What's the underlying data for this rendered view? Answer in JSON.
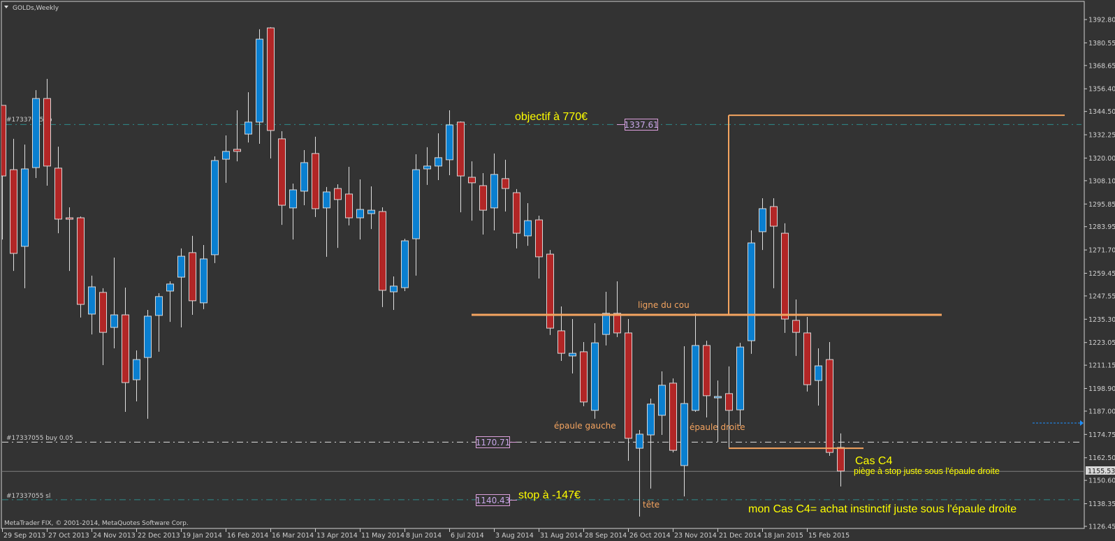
{
  "window": {
    "title": "GOLDs,Weekly",
    "footer": "MetaTrader FIX, © 2001-2014, MetaQuotes Software Corp."
  },
  "orders": {
    "tp_label": "#17337055 tp",
    "buy_label": "#17337055 buy 0.05",
    "sl_label": "#17337055 sl",
    "tp_price_box": "1337.61",
    "buy_price_box": "1170.71",
    "sl_price_box": "1140.43",
    "bid_price": "1155.53"
  },
  "annotations": {
    "objective": "objectif à 770€",
    "neckline": "ligne du cou",
    "left_shoulder": "épaule gauche",
    "right_shoulder": "épaule droite",
    "head": "tête",
    "stop": "stop à -147€",
    "case_title": "Cas C4",
    "case_sub": "piège à stop juste sous l'épaule droite",
    "case_note": "mon Cas C4= achat instinctif juste sous l'épaule droite"
  },
  "colors": {
    "background": "#333333",
    "bull": "#0a7fd0",
    "bear": "#b22626",
    "outline": "#d8d8d8",
    "order_tp_sl": "#2e8b8b",
    "order_buy": "#e0e0e0",
    "drawing": "#f4a460",
    "annotation": "#ffff00"
  },
  "chart_data": {
    "type": "candlestick",
    "symbol": "GOLDs",
    "timeframe": "Weekly",
    "x_start": "29 Sep 2013",
    "x_interval": "1 week",
    "ylim": [
      1126.45,
      1392.8
    ],
    "grid": false,
    "y_ticks": [
      "1392.80",
      "1380.55",
      "1368.65",
      "1356.40",
      "1344.50",
      "1332.25",
      "1320.00",
      "1308.10",
      "1295.85",
      "1283.95",
      "1271.70",
      "1259.45",
      "1247.55",
      "1235.30",
      "1223.05",
      "1211.15",
      "1198.90",
      "1187.00",
      "1174.75",
      "1162.50",
      "1150.60",
      "1138.35",
      "1126.45"
    ],
    "x_ticks": [
      "29 Sep 2013",
      "27 Oct 2013",
      "24 Nov 2013",
      "22 Dec 2013",
      "19 Jan 2014",
      "16 Feb 2014",
      "16 Mar 2014",
      "13 Apr 2014",
      "11 May 2014",
      "8 Jun 2014",
      "6 Jul 2014",
      "3 Aug 2014",
      "31 Aug 2014",
      "28 Sep 2014",
      "26 Oct 2014",
      "23 Nov 2014",
      "21 Dec 2014",
      "18 Jan 2015",
      "15 Feb 2015"
    ],
    "x_tick_every_bars": 4,
    "ohlc_columns": [
      "open",
      "high",
      "low",
      "close"
    ],
    "candles": [
      [
        1347.7,
        1347.7,
        1277.2,
        1310.6
      ],
      [
        1313.9,
        1330.1,
        1260.7,
        1269.9
      ],
      [
        1273.6,
        1327.1,
        1251.6,
        1314.3
      ],
      [
        1315.0,
        1355.7,
        1309.5,
        1351.3
      ],
      [
        1351.3,
        1361.6,
        1305.5,
        1315.8
      ],
      [
        1314.7,
        1326.0,
        1280.5,
        1287.9
      ],
      [
        1288.6,
        1294.1,
        1260.7,
        1287.9
      ],
      [
        1288.6,
        1289.3,
        1236.2,
        1243.1
      ],
      [
        1238.0,
        1258.2,
        1227.3,
        1252.3
      ],
      [
        1249.4,
        1251.6,
        1211.2,
        1228.4
      ],
      [
        1231.0,
        1267.7,
        1220.0,
        1237.6
      ],
      [
        1237.6,
        1251.9,
        1186.6,
        1202.0
      ],
      [
        1203.5,
        1218.9,
        1192.1,
        1214.1
      ],
      [
        1215.2,
        1240.2,
        1183.0,
        1236.9
      ],
      [
        1237.3,
        1249.0,
        1218.2,
        1247.2
      ],
      [
        1250.1,
        1255.2,
        1233.9,
        1253.8
      ],
      [
        1257.4,
        1272.5,
        1231.0,
        1268.4
      ],
      [
        1270.3,
        1279.1,
        1237.6,
        1245.0
      ],
      [
        1243.9,
        1274.3,
        1240.6,
        1267.0
      ],
      [
        1269.2,
        1320.9,
        1264.8,
        1318.7
      ],
      [
        1319.4,
        1331.9,
        1307.0,
        1323.5
      ],
      [
        1324.6,
        1345.1,
        1318.3,
        1323.5
      ],
      [
        1332.6,
        1354.6,
        1328.2,
        1338.9
      ],
      [
        1338.9,
        1387.7,
        1327.5,
        1382.5
      ],
      [
        1388.4,
        1388.8,
        1319.8,
        1334.5
      ],
      [
        1330.1,
        1334.1,
        1284.9,
        1295.2
      ],
      [
        1293.8,
        1306.6,
        1277.2,
        1303.3
      ],
      [
        1302.6,
        1324.2,
        1295.2,
        1317.6
      ],
      [
        1322.4,
        1331.2,
        1289.0,
        1293.4
      ],
      [
        1293.8,
        1304.8,
        1268.1,
        1302.2
      ],
      [
        1304.0,
        1306.2,
        1272.8,
        1298.2
      ],
      [
        1301.1,
        1315.4,
        1284.6,
        1288.6
      ],
      [
        1288.6,
        1308.8,
        1277.2,
        1293.0
      ],
      [
        1290.8,
        1305.1,
        1282.7,
        1292.6
      ],
      [
        1291.9,
        1294.1,
        1241.7,
        1250.5
      ],
      [
        1249.7,
        1257.8,
        1240.2,
        1252.7
      ],
      [
        1251.9,
        1277.6,
        1250.1,
        1276.5
      ],
      [
        1277.6,
        1322.0,
        1258.2,
        1313.9
      ],
      [
        1314.3,
        1325.7,
        1305.9,
        1315.8
      ],
      [
        1315.8,
        1333.0,
        1308.4,
        1320.2
      ],
      [
        1319.1,
        1345.1,
        1311.0,
        1337.4
      ],
      [
        1338.9,
        1339.3,
        1291.5,
        1310.6
      ],
      [
        1309.9,
        1318.3,
        1287.1,
        1307.0
      ],
      [
        1305.5,
        1312.1,
        1279.8,
        1292.6
      ],
      [
        1293.8,
        1322.4,
        1282.0,
        1311.4
      ],
      [
        1309.2,
        1319.1,
        1291.9,
        1304.0
      ],
      [
        1301.8,
        1303.7,
        1272.5,
        1280.5
      ],
      [
        1279.1,
        1296.3,
        1273.9,
        1287.1
      ],
      [
        1287.5,
        1289.7,
        1256.7,
        1268.1
      ],
      [
        1269.5,
        1271.7,
        1227.0,
        1230.6
      ],
      [
        1229.2,
        1242.0,
        1213.4,
        1217.4
      ],
      [
        1216.0,
        1235.4,
        1206.8,
        1217.4
      ],
      [
        1218.2,
        1223.3,
        1189.6,
        1191.8
      ],
      [
        1187.4,
        1233.2,
        1183.0,
        1222.9
      ],
      [
        1227.3,
        1249.7,
        1221.5,
        1238.4
      ],
      [
        1238.4,
        1255.2,
        1225.9,
        1228.1
      ],
      [
        1228.1,
        1235.4,
        1160.9,
        1172.7
      ],
      [
        1167.5,
        1177.1,
        1131.6,
        1174.9
      ],
      [
        1174.5,
        1193.6,
        1146.3,
        1190.7
      ],
      [
        1184.8,
        1207.9,
        1174.5,
        1200.6
      ],
      [
        1201.7,
        1204.2,
        1165.3,
        1166.4
      ],
      [
        1158.4,
        1221.1,
        1142.2,
        1191.0
      ],
      [
        1187.4,
        1238.4,
        1186.6,
        1221.5
      ],
      [
        1221.5,
        1224.0,
        1183.7,
        1195.1
      ],
      [
        1194.0,
        1203.1,
        1170.8,
        1194.7
      ],
      [
        1196.2,
        1210.5,
        1167.9,
        1187.4
      ],
      [
        1187.7,
        1222.9,
        1179.3,
        1220.7
      ],
      [
        1224.0,
        1282.0,
        1217.1,
        1275.4
      ],
      [
        1281.3,
        1298.9,
        1271.7,
        1293.4
      ],
      [
        1294.5,
        1298.9,
        1251.6,
        1284.2
      ],
      [
        1280.5,
        1285.7,
        1228.1,
        1235.4
      ],
      [
        1234.7,
        1245.7,
        1216.0,
        1228.4
      ],
      [
        1228.1,
        1236.5,
        1197.3,
        1200.9
      ],
      [
        1203.1,
        1220.0,
        1189.9,
        1210.8
      ],
      [
        1214.1,
        1223.3,
        1163.5,
        1165.3
      ],
      [
        1167.9,
        1175.3,
        1147.4,
        1155.5
      ]
    ],
    "levels": {
      "take_profit": 1337.61,
      "buy": 1170.71,
      "stop_loss": 1140.43,
      "bid": 1155.53
    },
    "drawings": {
      "neckline": {
        "price": 1237.6,
        "from_bar": 41,
        "to_bar": 84
      },
      "target_box_top": {
        "price": 1342.5,
        "from_bar": 65,
        "to_bar": 95
      },
      "right_shoulder_line": {
        "price": 1167.5,
        "from_bar": 65,
        "to_bar": 77
      }
    }
  }
}
